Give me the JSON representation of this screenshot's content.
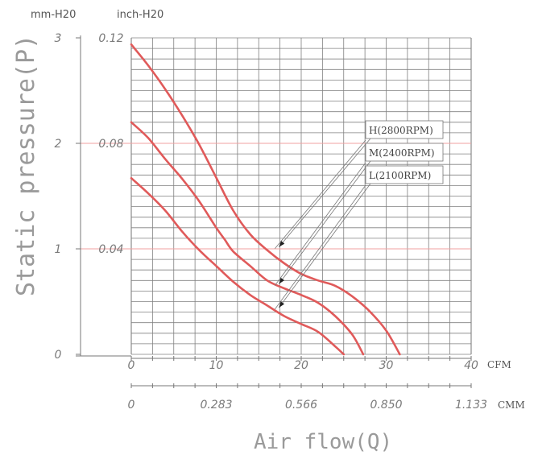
{
  "chart_data": {
    "type": "line",
    "title": "",
    "ylabel": "Static pressure(P)",
    "xlabel": "Air flow(Q)",
    "y_units": [
      "mm-H20",
      "inch-H20"
    ],
    "y_ticks_mm": [
      "0",
      "1",
      "2",
      "3"
    ],
    "y_ticks_inch": [
      "0.04",
      "0.08",
      "0.12"
    ],
    "x_unit_cfm": "CFM",
    "x_unit_cmm": "CMM",
    "x_ticks_cfm": [
      "0",
      "10",
      "20",
      "30",
      "40"
    ],
    "x_ticks_cmm": [
      "0",
      "0.283",
      "0.566",
      "0.850",
      "1.133"
    ],
    "xlim": [
      0,
      40
    ],
    "ylim": [
      0,
      0.12
    ],
    "grid": true,
    "colors": {
      "curve": "#e05a5a",
      "grid": "#808080",
      "highlight_grid": "#f0a0a0"
    },
    "series": [
      {
        "name": "H(2800RPM)",
        "x": [
          0,
          2,
          4,
          6,
          8,
          10,
          12,
          14,
          16,
          18,
          20,
          22,
          24,
          26,
          28,
          30,
          31.6
        ],
        "y": [
          0.1175,
          0.1095,
          0.1005,
          0.0905,
          0.0795,
          0.067,
          0.0545,
          0.0455,
          0.0395,
          0.0345,
          0.0305,
          0.028,
          0.026,
          0.022,
          0.0165,
          0.009,
          0.0
        ]
      },
      {
        "name": "M(2400RPM)",
        "x": [
          0,
          2,
          4,
          6,
          8,
          10,
          11,
          12,
          14,
          16,
          18,
          20,
          22,
          24,
          26,
          27.3
        ],
        "y": [
          0.088,
          0.082,
          0.074,
          0.0665,
          0.058,
          0.048,
          0.0435,
          0.039,
          0.0335,
          0.028,
          0.025,
          0.0225,
          0.0195,
          0.0145,
          0.0075,
          0.0
        ]
      },
      {
        "name": "L(2100RPM)",
        "x": [
          0,
          2,
          4,
          6,
          8,
          10,
          12,
          14,
          16,
          18,
          20,
          22,
          24,
          25
        ],
        "y": [
          0.0668,
          0.061,
          0.0545,
          0.0465,
          0.0395,
          0.0335,
          0.0275,
          0.0225,
          0.0185,
          0.0145,
          0.0115,
          0.0085,
          0.003,
          0.0
        ]
      }
    ]
  }
}
